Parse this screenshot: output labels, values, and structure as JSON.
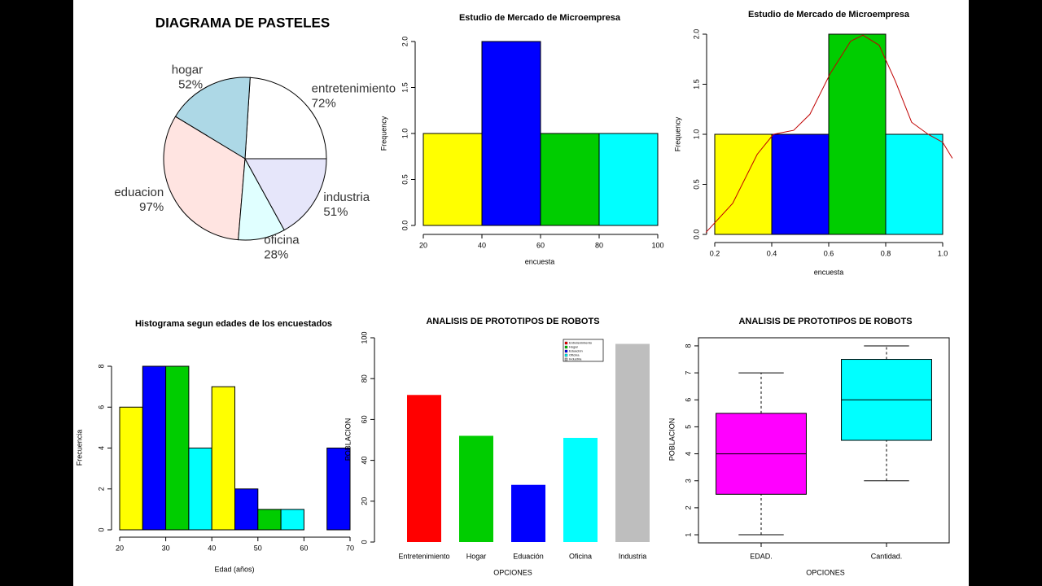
{
  "chart_data": [
    {
      "type": "pie",
      "title": "DIAGRAMA DE PASTELES",
      "categories": [
        "entretenimiento",
        "hogar",
        "eduacion",
        "oficina",
        "industria"
      ],
      "values": [
        72,
        52,
        97,
        28,
        51
      ],
      "value_labels": [
        "72%",
        "52%",
        "97%",
        "28%",
        "51%"
      ],
      "colors": [
        "#ffffff",
        "#add8e6",
        "#ffe4e1",
        "#e0ffff",
        "#e6e6fa"
      ]
    },
    {
      "type": "histogram",
      "title": "Estudio de Mercado de Microempresa",
      "x_label": "encuesta",
      "y_label": "Frequency",
      "bins": [
        20,
        40,
        60,
        80,
        100
      ],
      "counts": [
        1,
        2,
        1,
        1
      ],
      "colors": [
        "#ffff00",
        "#0000ff",
        "#00cd00",
        "#00ffff"
      ],
      "xlim": [
        20,
        100
      ],
      "xticks": [
        20,
        40,
        60,
        80,
        100
      ],
      "ylim": [
        0,
        2
      ],
      "yticks": [
        {
          "value": 0,
          "label": "0.0"
        },
        0.5,
        {
          "value": 1,
          "label": "1.0"
        },
        1.5,
        {
          "value": 2,
          "label": "2.0"
        }
      ]
    },
    {
      "type": "histogram",
      "title": "Estudio de Mercado de Microempresa",
      "x_label": "encuesta",
      "y_label": "Frequency",
      "bins": [
        0.2,
        0.4,
        0.6,
        0.8,
        1.0
      ],
      "counts": [
        1,
        1,
        2,
        1
      ],
      "colors": [
        "#ffff00",
        "#0000ff",
        "#00cd00",
        "#00ffff"
      ],
      "density": {
        "color": "#c00000",
        "x": [
          0.169,
          0.263,
          0.349,
          0.406,
          0.477,
          0.534,
          0.606,
          0.677,
          0.72,
          0.777,
          0.834,
          0.891,
          0.949,
          1.0,
          1.034
        ],
        "values": [
          0.02,
          0.31,
          0.8,
          1.0,
          1.04,
          1.2,
          1.61,
          1.93,
          1.99,
          1.89,
          1.53,
          1.12,
          1.0,
          0.92,
          0.76
        ]
      },
      "xlim": [
        0.2,
        1.0
      ],
      "xticks": [
        0.2,
        0.4,
        0.6,
        0.8,
        {
          "value": 1,
          "label": "1.0"
        }
      ],
      "ylim": [
        0,
        2
      ],
      "yticks": [
        {
          "value": 0,
          "label": "0.0"
        },
        0.5,
        {
          "value": 1,
          "label": "1.0"
        },
        1.5,
        {
          "value": 2,
          "label": "2.0"
        }
      ]
    },
    {
      "type": "histogram",
      "title": "Histograma segun edades de los encuestados",
      "x_label": "Edad (años)",
      "y_label": "Frecuencia",
      "bins": [
        20,
        25,
        30,
        35,
        40,
        45,
        50,
        55,
        60,
        65,
        70
      ],
      "counts": [
        6,
        8,
        8,
        4,
        7,
        2,
        1,
        1,
        0,
        4
      ],
      "colors": [
        "#ffff00",
        "#0000ff",
        "#00cd00",
        "#00ffff"
      ],
      "xlim": [
        20,
        70
      ],
      "xticks": [
        20,
        30,
        40,
        50,
        60,
        70
      ],
      "ylim": [
        0,
        8
      ],
      "yticks": [
        0,
        2,
        4,
        6,
        8
      ]
    },
    {
      "type": "bar",
      "title": "ANALISIS DE PROTOTIPOS DE ROBOTS",
      "x_label": "OPCIONES",
      "y_label": "POBLACION",
      "categories": [
        "Entretenimiento",
        "Hogar",
        "Eduación",
        "Oficina",
        "Industria"
      ],
      "values": [
        72,
        52,
        28,
        51,
        97
      ],
      "colors": [
        "#ff0000",
        "#00cd00",
        "#0000ff",
        "#00ffff",
        "#bebebe"
      ],
      "legend": "topright",
      "ylim": [
        0,
        100
      ],
      "yticks": [
        0,
        20,
        40,
        60,
        80,
        100
      ]
    },
    {
      "type": "box",
      "title": "ANALISIS DE PROTOTIPOS DE ROBOTS",
      "x_label": "OPCIONES",
      "y_label": "POBLACION",
      "boxes": [
        {
          "name": "EDAD.",
          "min": 1,
          "q1": 2.5,
          "median": 4,
          "q3": 5.5,
          "max": 7,
          "color": "#ff00ff"
        },
        {
          "name": "Cantidad.",
          "min": 3,
          "q1": 4.5,
          "median": 6,
          "q3": 7.5,
          "max": 8,
          "color": "#00ffff"
        }
      ],
      "ylim": [
        0.7,
        8.3
      ],
      "yticks": [
        1,
        2,
        3,
        4,
        5,
        6,
        7,
        8
      ]
    }
  ]
}
